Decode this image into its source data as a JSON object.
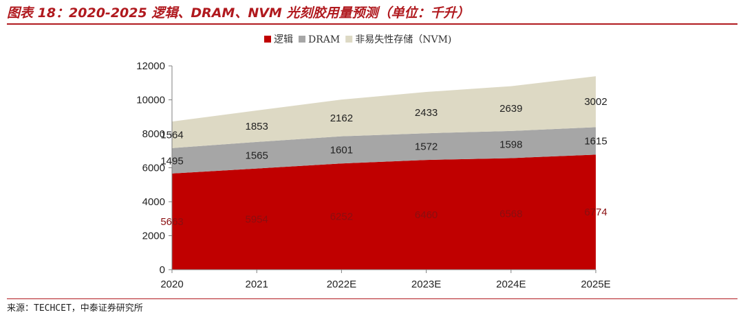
{
  "header": {
    "title": "图表 18：2020-2025 逻辑、DRAM、NVM 光刻胶用量预测（单位：千升）"
  },
  "footer": {
    "source": "来源：TECHCET，中泰证券研究所"
  },
  "colors": {
    "accent": "#b0191e",
    "logic": "#c00000",
    "dram": "#a6a6a6",
    "nvm": "#ddd9c4"
  },
  "chart_data": {
    "type": "area",
    "stacked": true,
    "categories": [
      "2020",
      "2021",
      "2022E",
      "2023E",
      "2024E",
      "2025E"
    ],
    "series": [
      {
        "name": "逻辑",
        "color": "#c00000",
        "values": [
          5663,
          5954,
          6252,
          6460,
          6568,
          6774
        ]
      },
      {
        "name": "DRAM",
        "color": "#a6a6a6",
        "values": [
          1495,
          1565,
          1601,
          1572,
          1598,
          1615
        ]
      },
      {
        "name": "非易失性存储（NVM)",
        "color": "#ddd9c4",
        "values": [
          1564,
          1853,
          2162,
          2433,
          2639,
          3002
        ]
      }
    ],
    "ylim": [
      0,
      12000
    ],
    "yticks": [
      "0",
      "2000",
      "4000",
      "6000",
      "8000",
      "10000",
      "12000"
    ],
    "legend_position": "top-center",
    "grid": false
  }
}
